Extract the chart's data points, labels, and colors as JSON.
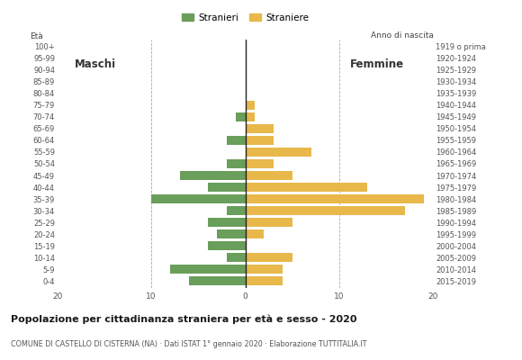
{
  "age_groups_bottom_to_top": [
    "0-4",
    "5-9",
    "10-14",
    "15-19",
    "20-24",
    "25-29",
    "30-34",
    "35-39",
    "40-44",
    "45-49",
    "50-54",
    "55-59",
    "60-64",
    "65-69",
    "70-74",
    "75-79",
    "80-84",
    "85-89",
    "90-94",
    "95-99",
    "100+"
  ],
  "birth_years_bottom_to_top": [
    "2015-2019",
    "2010-2014",
    "2005-2009",
    "2000-2004",
    "1995-1999",
    "1990-1994",
    "1985-1989",
    "1980-1984",
    "1975-1979",
    "1970-1974",
    "1965-1969",
    "1960-1964",
    "1955-1959",
    "1950-1954",
    "1945-1949",
    "1940-1944",
    "1935-1939",
    "1930-1934",
    "1925-1929",
    "1920-1924",
    "1919 o prima"
  ],
  "males_bottom_to_top": [
    6,
    8,
    2,
    4,
    3,
    4,
    2,
    10,
    4,
    7,
    2,
    0,
    2,
    0,
    1,
    0,
    0,
    0,
    0,
    0,
    0
  ],
  "females_bottom_to_top": [
    4,
    4,
    5,
    0,
    2,
    5,
    17,
    19,
    13,
    5,
    3,
    7,
    3,
    3,
    1,
    1,
    0,
    0,
    0,
    0,
    0
  ],
  "male_color": "#6a9e5b",
  "female_color": "#e8b84b",
  "background_color": "#ffffff",
  "grid_color": "#aaaaaa",
  "title": "Popolazione per cittadinanza straniera per età e sesso - 2020",
  "subtitle": "COMUNE DI CASTELLO DI CISTERNA (NA) · Dati ISTAT 1° gennaio 2020 · Elaborazione TUTTITALIA.IT",
  "xlim": 20,
  "label_males": "Maschi",
  "label_females": "Femmine",
  "ylabel_age": "Età",
  "ylabel_birth": "Anno di nascita",
  "legend_males": "Stranieri",
  "legend_females": "Straniere"
}
